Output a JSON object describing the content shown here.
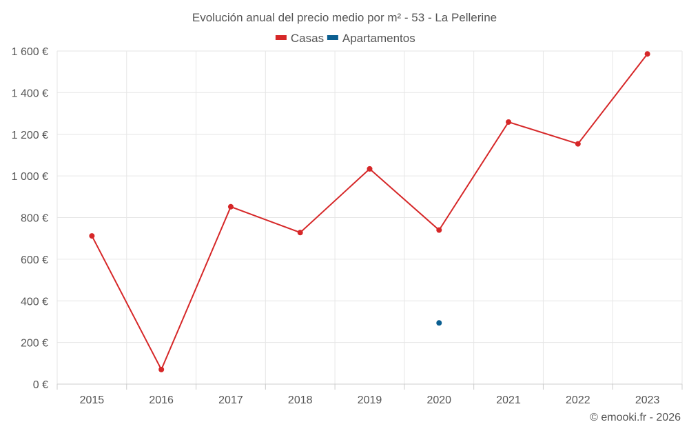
{
  "chart_data": {
    "type": "line",
    "title": "Evolución anual del precio medio por m² - 53 - La Pellerine",
    "categories": [
      "2015",
      "2016",
      "2017",
      "2018",
      "2019",
      "2020",
      "2021",
      "2022",
      "2023"
    ],
    "series": [
      {
        "name": "Casas",
        "color": "#d62728",
        "values": [
          712,
          70,
          852,
          728,
          1034,
          740,
          1259,
          1154,
          1586
        ]
      },
      {
        "name": "Apartamentos",
        "color": "#0b5f91",
        "values": [
          null,
          null,
          null,
          null,
          null,
          294,
          null,
          null,
          null
        ]
      }
    ],
    "ylim": [
      0,
      1600
    ],
    "yticks": [
      0,
      200,
      400,
      600,
      800,
      1000,
      1200,
      1400,
      1600
    ],
    "ytick_labels": [
      "0 €",
      "200 €",
      "400 €",
      "600 €",
      "800 €",
      "1 000 €",
      "1 200 €",
      "1 400 €",
      "1 600 €"
    ],
    "xlabel": "",
    "ylabel": "",
    "grid": true,
    "legend_position": "top-center"
  },
  "credit": "© emooki.fr - 2026"
}
